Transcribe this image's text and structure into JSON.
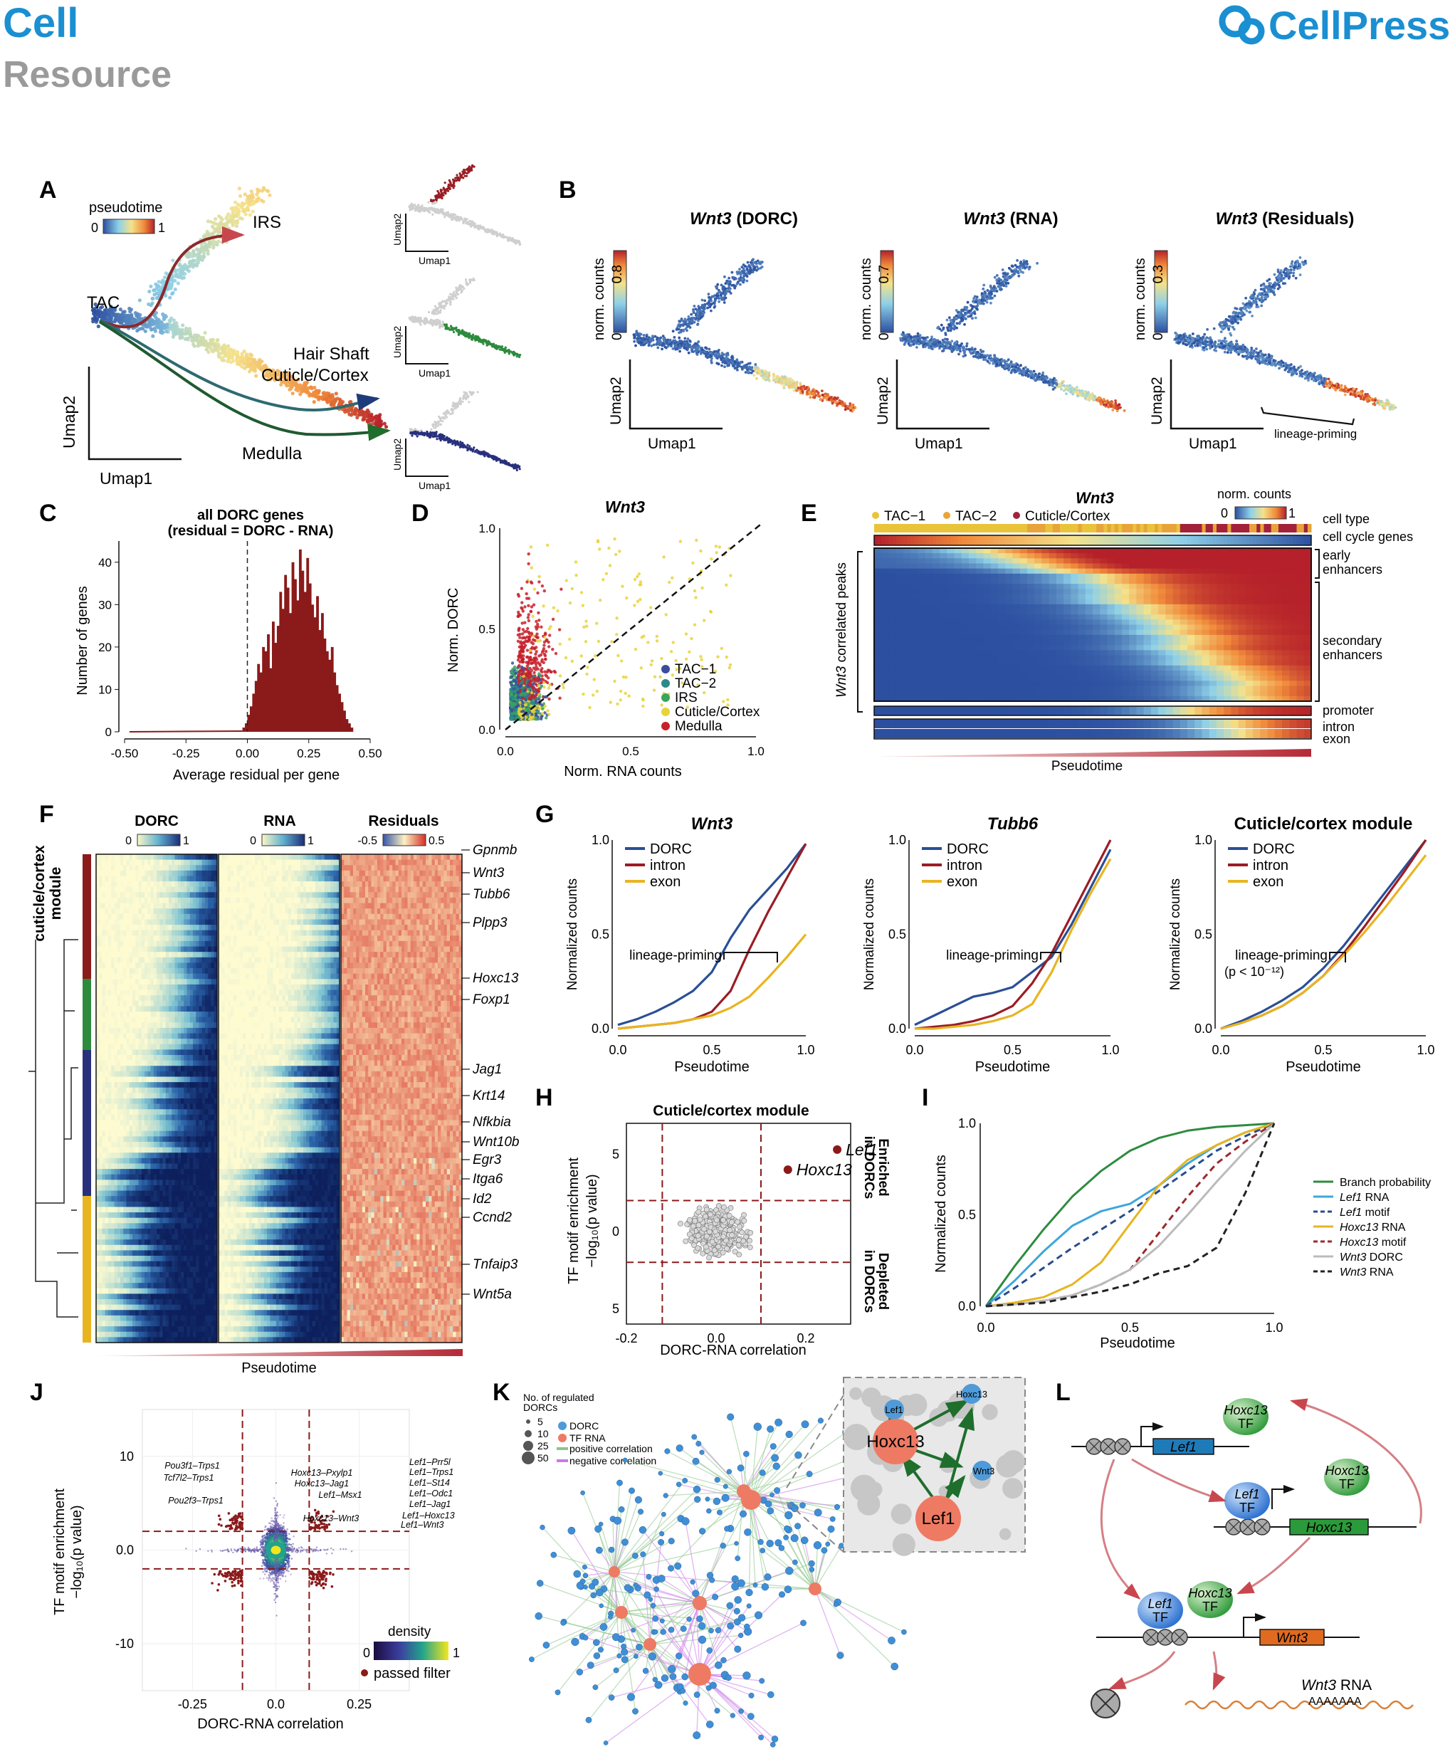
{
  "header": {
    "journal": "Cell",
    "section": "Resource",
    "publisher": "CellPress"
  },
  "panels": {
    "A": {
      "letter": "A",
      "legend_title": "pseudotime",
      "legend_min": "0",
      "legend_max": "1",
      "labels": {
        "irs": "IRS",
        "tac": "TAC",
        "hair_shaft": "Hair Shaft",
        "cuticle": "Cuticle/Cortex",
        "medulla": "Medulla"
      },
      "axis_x": "Umap1",
      "axis_y": "Umap2"
    },
    "B": {
      "letter": "B",
      "titles": [
        {
          "gene": "Wnt3",
          "suffix": " (DORC)"
        },
        {
          "gene": "Wnt3",
          "suffix": " (RNA)"
        },
        {
          "gene": "Wnt3",
          "suffix": " (Residuals)"
        }
      ],
      "colorbar_label": "norm. counts",
      "colorbar_max": [
        "0.8",
        "0.7",
        "0.3"
      ],
      "colorbar_min": "0",
      "lineage_priming": "lineage-priming"
    },
    "C": {
      "letter": "C",
      "title_line1": "all DORC genes",
      "title_line2": "(residual = DORC - RNA)",
      "ylabel": "Number of genes",
      "xlabel": "Average residual per gene"
    },
    "D": {
      "letter": "D",
      "title": "Wnt3",
      "ylabel": "Norm. DORC",
      "xlabel": "Norm. RNA counts",
      "legend": [
        "TAC−1",
        "TAC−2",
        "IRS",
        "Cuticle/Cortex",
        "Medulla"
      ]
    },
    "E": {
      "letter": "E",
      "title": "Wnt3",
      "colorbar_label": "norm. counts",
      "cb_min": "0",
      "cb_max": "1",
      "legend": [
        "TAC−1",
        "TAC−2",
        "Cuticle/Cortex"
      ],
      "row_labels": [
        "cell type",
        "cell cycle genes",
        "early",
        "enhancers",
        "secondary",
        "enhancers",
        "promoter",
        "intron",
        "exon"
      ],
      "ylabel_gene": "Wnt3",
      "ylabel_rest": " correlated peaks",
      "xlabel": "Pseudotime"
    },
    "F": {
      "letter": "F",
      "heads": [
        "DORC",
        "RNA",
        "Residuals"
      ],
      "cb": [
        [
          "0",
          "1"
        ],
        [
          "0",
          "1"
        ],
        [
          "-0.5",
          "0.5"
        ]
      ],
      "module": [
        "cuticle/cortex",
        "module"
      ],
      "xlabel": "Pseudotime",
      "genes": [
        "Gpnmb",
        "Wnt3",
        "Tubb6",
        "Plpp3",
        "Hoxc13",
        "Foxp1",
        "Jag1",
        "Krt14",
        "Nfkbia",
        "Wnt10b",
        "Egr3",
        "Itga6",
        "Id2",
        "Ccnd2",
        "Tnfaip3",
        "Wnt5a"
      ]
    },
    "G": {
      "letter": "G",
      "titles": [
        "Wnt3",
        "Tubb6",
        "Cuticle/cortex module"
      ],
      "legend": [
        "DORC",
        "intron",
        "exon"
      ],
      "ylabel": "Normalized counts",
      "xlabel": "Pseudotime",
      "lineage_priming": "lineage-priming",
      "pval": "(p < 10⁻¹²)"
    },
    "H": {
      "letter": "H",
      "title": "Cuticle/cortex module",
      "points": [
        "Lef1",
        "Hoxc13"
      ],
      "enriched": [
        "Enriched",
        "in DORCs"
      ],
      "depleted": [
        "Depleted",
        "in DORCs"
      ],
      "ylabel1": "TF motif enrichment",
      "ylabel2": "−log₁₀(p value)",
      "xlabel": "DORC-RNA correlation"
    },
    "I": {
      "letter": "I",
      "ylabel": "Normalized counts",
      "xlabel": "Pseudotime",
      "legend": [
        "Branch probability",
        "Lef1 RNA",
        "Lef1 motif",
        "Hoxc13 RNA",
        "Hoxc13 motif",
        "Wnt3 DORC",
        "Wnt3 RNA"
      ]
    },
    "J": {
      "letter": "J",
      "ylabel1": "TF motif enrichment",
      "ylabel2": "−log₁₀(p value)",
      "xlabel": "DORC-RNA correlation",
      "density": "density",
      "d_min": "0",
      "d_max": "1",
      "passed": "passed filter",
      "pair_labels": [
        "Pou3f1–Trps1",
        "Tcf7l2–Trps1",
        "Pou2f3–Trps1",
        "Hoxc13–Pxylp1",
        "Hoxc13–Jag1",
        "Lef1–Msx1",
        "Hoxc13–Wnt3",
        "Lef1–Prr5l",
        "Lef1–Trps1",
        "Lef1–St14",
        "Lef1–Odc1",
        "Lef1–Jag1",
        "Lef1–Hoxc13",
        "Lef1–Wnt3"
      ]
    },
    "K": {
      "letter": "K",
      "legend_title": [
        "No. of regulated",
        "DORCs"
      ],
      "sizes": [
        "5",
        "10",
        "25",
        "50"
      ],
      "types": [
        "DORC",
        "TF RNA",
        "positive correlation",
        "negative correlation"
      ],
      "inset_nodes": [
        "Lef1",
        "Hoxc13",
        "Wnt3",
        "Hoxc13",
        "Lef1"
      ]
    },
    "L": {
      "letter": "L",
      "tf": "TF",
      "hoxc13": "Hoxc13",
      "lef1": "Lef1",
      "wnt3": "Wnt3",
      "rna": "Wnt3 RNA",
      "polya": "AAAAAAA"
    }
  },
  "chart_data": [
    {
      "type": "bar",
      "panel": "C",
      "title": "all DORC genes (residual = DORC - RNA)",
      "xlabel": "Average residual per gene",
      "ylabel": "Number of genes",
      "xlim": [
        -0.5,
        0.5
      ],
      "ylim": [
        0,
        45
      ],
      "x_ticks": [
        "-0.50",
        "-0.25",
        "0.00",
        "0.25",
        "0.50"
      ],
      "y_ticks": [
        "0",
        "10",
        "20",
        "30",
        "40"
      ],
      "bins": [
        -0.02,
        -0.01,
        0.0,
        0.01,
        0.02,
        0.03,
        0.04,
        0.05,
        0.06,
        0.07,
        0.08,
        0.09,
        0.1,
        0.11,
        0.12,
        0.13,
        0.14,
        0.15,
        0.16,
        0.17,
        0.18,
        0.19,
        0.2,
        0.21,
        0.22,
        0.23,
        0.24,
        0.25,
        0.26,
        0.27,
        0.28,
        0.29,
        0.3,
        0.31,
        0.32,
        0.33,
        0.34,
        0.35,
        0.36,
        0.37,
        0.38,
        0.39,
        0.4,
        0.41,
        0.42
      ],
      "values": [
        1,
        2,
        4,
        6,
        9,
        12,
        16,
        14,
        20,
        19,
        23,
        15,
        26,
        21,
        25,
        33,
        29,
        37,
        34,
        28,
        40,
        36,
        31,
        43,
        38,
        33,
        41,
        35,
        30,
        27,
        32,
        24,
        28,
        22,
        19,
        17,
        20,
        14,
        11,
        9,
        7,
        5,
        3,
        2,
        1
      ]
    },
    {
      "type": "scatter",
      "panel": "D",
      "title": "Wnt3",
      "xlabel": "Norm. RNA counts",
      "ylabel": "Norm. DORC",
      "xlim": [
        0,
        1
      ],
      "ylim": [
        0,
        1
      ],
      "x_ticks": [
        "0.0",
        "0.5",
        "1.0"
      ],
      "y_ticks": [
        "0.0",
        "0.5",
        "1.0"
      ],
      "series": [
        {
          "name": "TAC−1",
          "color": "#3b4d9b"
        },
        {
          "name": "TAC−2",
          "color": "#2b8a8a"
        },
        {
          "name": "IRS",
          "color": "#3aa65a"
        },
        {
          "name": "Cuticle/Cortex",
          "color": "#e9d33a"
        },
        {
          "name": "Medulla",
          "color": "#c8202a"
        }
      ]
    },
    {
      "type": "line",
      "panel": "G",
      "title": "Wnt3",
      "xlabel": "Pseudotime",
      "ylabel": "Normalized counts",
      "x": [
        0,
        0.1,
        0.2,
        0.3,
        0.4,
        0.5,
        0.6,
        0.7,
        0.8,
        0.9,
        1.0
      ],
      "series": [
        {
          "name": "DORC",
          "values": [
            0.02,
            0.05,
            0.09,
            0.14,
            0.2,
            0.3,
            0.48,
            0.63,
            0.74,
            0.85,
            0.98
          ]
        },
        {
          "name": "intron",
          "values": [
            0.0,
            0.01,
            0.02,
            0.03,
            0.05,
            0.09,
            0.2,
            0.42,
            0.62,
            0.8,
            0.98
          ]
        },
        {
          "name": "exon",
          "values": [
            0.0,
            0.01,
            0.02,
            0.03,
            0.05,
            0.07,
            0.11,
            0.17,
            0.27,
            0.38,
            0.5
          ]
        }
      ],
      "xlim": [
        0,
        1
      ],
      "ylim": [
        0,
        1
      ]
    },
    {
      "type": "line",
      "panel": "G",
      "title": "Tubb6",
      "xlabel": "Pseudotime",
      "ylabel": "Normalized counts",
      "x": [
        0,
        0.1,
        0.2,
        0.3,
        0.4,
        0.5,
        0.6,
        0.7,
        0.8,
        0.9,
        1.0
      ],
      "series": [
        {
          "name": "DORC",
          "values": [
            0.02,
            0.07,
            0.12,
            0.17,
            0.19,
            0.22,
            0.3,
            0.38,
            0.55,
            0.75,
            0.95
          ]
        },
        {
          "name": "intron",
          "values": [
            0.0,
            0.01,
            0.02,
            0.04,
            0.07,
            0.12,
            0.24,
            0.4,
            0.6,
            0.8,
            1.0
          ]
        },
        {
          "name": "exon",
          "values": [
            0.0,
            0.0,
            0.01,
            0.02,
            0.04,
            0.07,
            0.13,
            0.3,
            0.52,
            0.72,
            0.9
          ]
        }
      ],
      "xlim": [
        0,
        1
      ],
      "ylim": [
        0,
        1
      ]
    },
    {
      "type": "line",
      "panel": "G",
      "title": "Cuticle/cortex module",
      "xlabel": "Pseudotime",
      "ylabel": "Normalized counts",
      "x": [
        0,
        0.1,
        0.2,
        0.3,
        0.4,
        0.5,
        0.6,
        0.7,
        0.8,
        0.9,
        1.0
      ],
      "series": [
        {
          "name": "DORC",
          "values": [
            0.0,
            0.04,
            0.09,
            0.15,
            0.22,
            0.32,
            0.44,
            0.58,
            0.72,
            0.86,
            1.0
          ]
        },
        {
          "name": "intron",
          "values": [
            0.0,
            0.03,
            0.07,
            0.12,
            0.19,
            0.28,
            0.4,
            0.54,
            0.69,
            0.84,
            1.0
          ]
        },
        {
          "name": "exon",
          "values": [
            0.0,
            0.03,
            0.07,
            0.12,
            0.19,
            0.28,
            0.39,
            0.51,
            0.64,
            0.78,
            0.92
          ]
        }
      ],
      "xlim": [
        0,
        1
      ],
      "ylim": [
        0,
        1
      ]
    },
    {
      "type": "scatter",
      "panel": "H",
      "title": "Cuticle/cortex module",
      "xlabel": "DORC-RNA correlation",
      "xlim": [
        -0.2,
        0.3
      ],
      "ylim": [
        -6,
        7
      ],
      "x_ticks": [
        "-0.2",
        "0.0",
        "0.2"
      ],
      "y_ticks": [
        "5",
        "0",
        "5"
      ],
      "highlighted": [
        {
          "name": "Lef1",
          "x": 0.27,
          "y": 5.3
        },
        {
          "name": "Hoxc13",
          "x": 0.16,
          "y": 4.0
        }
      ]
    },
    {
      "type": "line",
      "panel": "I",
      "xlabel": "Pseudotime",
      "ylabel": "Normalized counts",
      "x": [
        0,
        0.1,
        0.2,
        0.3,
        0.4,
        0.5,
        0.6,
        0.7,
        0.8,
        0.9,
        1.0
      ],
      "xlim": [
        0,
        1
      ],
      "ylim": [
        0,
        1
      ],
      "series": [
        {
          "name": "Branch probability",
          "values": [
            0,
            0.22,
            0.42,
            0.6,
            0.74,
            0.85,
            0.92,
            0.96,
            0.98,
            0.99,
            1.0
          ],
          "color": "#2e8b3e",
          "dash": false
        },
        {
          "name": "Lef1 RNA",
          "values": [
            0,
            0.14,
            0.3,
            0.44,
            0.52,
            0.56,
            0.66,
            0.78,
            0.88,
            0.95,
            1.0
          ],
          "color": "#3ca6dc",
          "dash": false
        },
        {
          "name": "Lef1 motif",
          "values": [
            0,
            0.1,
            0.21,
            0.32,
            0.42,
            0.52,
            0.63,
            0.74,
            0.85,
            0.93,
            1.0
          ],
          "color": "#284b8c",
          "dash": true
        },
        {
          "name": "Hoxc13 RNA",
          "values": [
            0,
            0.02,
            0.05,
            0.12,
            0.24,
            0.45,
            0.66,
            0.8,
            0.88,
            0.95,
            1.0
          ],
          "color": "#e8b420",
          "dash": false
        },
        {
          "name": "Hoxc13 motif",
          "values": [
            0,
            0.01,
            0.03,
            0.06,
            0.12,
            0.2,
            0.4,
            0.6,
            0.78,
            0.9,
            1.0
          ],
          "color": "#9c2a2a",
          "dash": true
        },
        {
          "name": "Wnt3 DORC",
          "values": [
            0,
            0.01,
            0.03,
            0.06,
            0.12,
            0.2,
            0.33,
            0.5,
            0.68,
            0.85,
            1.0
          ],
          "color": "#bbbbbb",
          "dash": false
        },
        {
          "name": "Wnt3 RNA",
          "values": [
            0,
            0.01,
            0.02,
            0.05,
            0.08,
            0.12,
            0.18,
            0.22,
            0.32,
            0.62,
            1.0
          ],
          "color": "#222222",
          "dash": true
        }
      ]
    },
    {
      "type": "scatter",
      "panel": "J",
      "xlabel": "DORC-RNA correlation",
      "xlim": [
        -0.4,
        0.4
      ],
      "ylim": [
        -15,
        15
      ],
      "x_ticks": [
        "-0.25",
        "0.0",
        "0.25"
      ],
      "y_ticks": [
        "10",
        "0.0",
        "-10"
      ]
    }
  ]
}
